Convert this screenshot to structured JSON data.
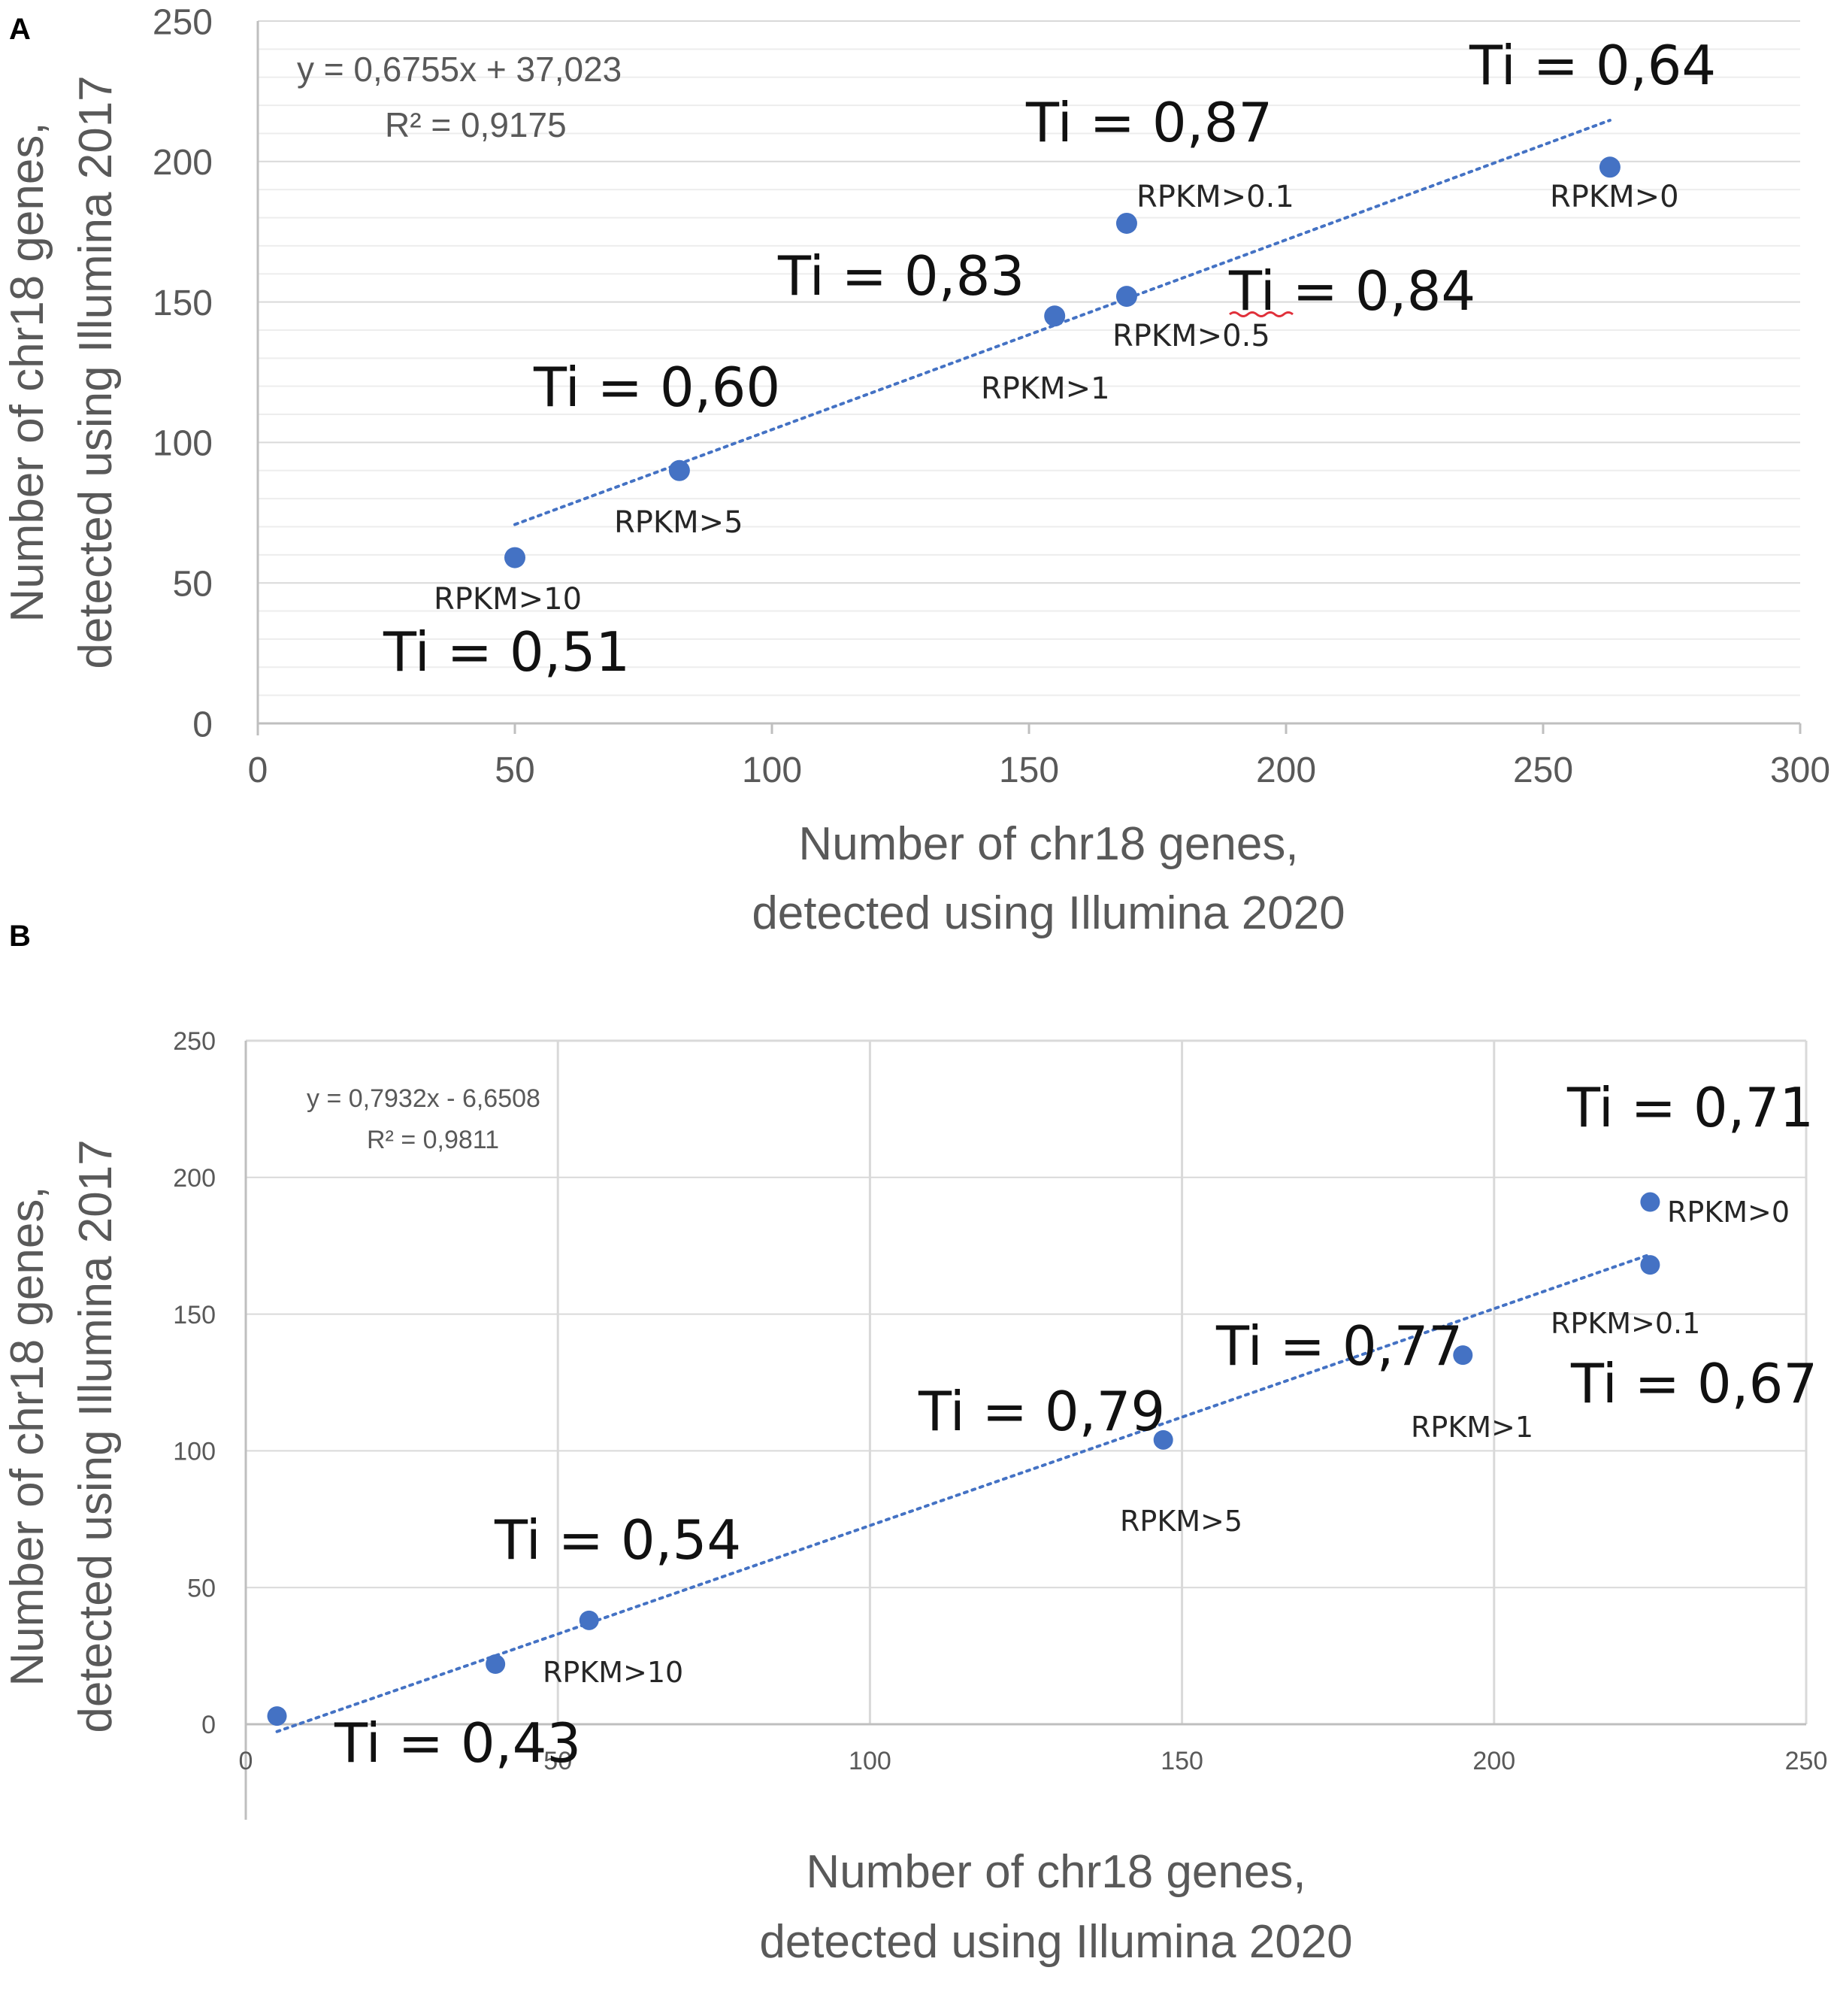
{
  "colors": {
    "point": "#4472C4",
    "trend": "#4472C4",
    "grid_major": "#D9D9D9",
    "grid_minor": "#EDEDED",
    "axis": "#BFBFBF"
  },
  "chart_data": [
    {
      "panel": "A",
      "type": "scatter",
      "xlabel_line1": "Number of chr18 genes,",
      "xlabel_line2": "detected using Illumina 2020",
      "ylabel_line1": "Number of chr18 genes,",
      "ylabel_line2": "detected using Illumina 2017",
      "xlim": [
        0,
        300
      ],
      "ylim": [
        0,
        250
      ],
      "xticks": [
        0,
        50,
        100,
        150,
        200,
        250,
        300
      ],
      "yticks": [
        0,
        50,
        100,
        150,
        200,
        250
      ],
      "points": [
        {
          "x": 50,
          "y": 59,
          "label": "RPKM>10",
          "ti": "Ti = 0,51"
        },
        {
          "x": 82,
          "y": 90,
          "label": "RPKM>5",
          "ti": "Ti = 0,60"
        },
        {
          "x": 155,
          "y": 145,
          "label": "RPKM>1",
          "ti": "Ti = 0,83"
        },
        {
          "x": 169,
          "y": 152,
          "label": "RPKM>0.5",
          "ti": "Ti = 0,84"
        },
        {
          "x": 169,
          "y": 178,
          "label": "RPKM>0.1",
          "ti": "Ti = 0,87"
        },
        {
          "x": 263,
          "y": 198,
          "label": "RPKM>0",
          "ti": "Ti = 0,64"
        }
      ],
      "trendline": {
        "slope": 0.6755,
        "intercept": 37.023,
        "x_range": [
          50,
          263
        ]
      },
      "equation": "y = 0,6755x + 37,023",
      "r2": "R² = 0,9175"
    },
    {
      "panel": "B",
      "type": "scatter",
      "xlabel_line1": "Number of chr18 genes,",
      "xlabel_line2": "detected using Illumina 2020",
      "ylabel_line1": "Number of chr18 genes,",
      "ylabel_line2": "detected using Illumina 2017",
      "xlim": [
        0,
        250
      ],
      "ylim": [
        0,
        250
      ],
      "xticks": [
        0,
        50,
        100,
        150,
        200,
        250
      ],
      "yticks": [
        0,
        50,
        100,
        150,
        200,
        250
      ],
      "points": [
        {
          "x": 5,
          "y": 3,
          "label": "",
          "ti": "Ti = 0,43"
        },
        {
          "x": 40,
          "y": 22,
          "label": "",
          "ti": ""
        },
        {
          "x": 55,
          "y": 38,
          "label": "RPKM>10",
          "ti": "Ti = 0,54"
        },
        {
          "x": 147,
          "y": 104,
          "label": "RPKM>5",
          "ti": "Ti = 0,79"
        },
        {
          "x": 195,
          "y": 135,
          "label": "RPKM>1",
          "ti": "Ti = 0,77"
        },
        {
          "x": 225,
          "y": 168,
          "label": "RPKM>0.1",
          "ti": "Ti = 0,67"
        },
        {
          "x": 225,
          "y": 191,
          "label": "RPKM>0",
          "ti": "Ti = 0,71"
        }
      ],
      "trendline": {
        "slope": 0.7932,
        "intercept": -6.6508,
        "x_range": [
          5,
          225
        ]
      },
      "equation": "y = 0,7932x - 6,6508",
      "r2": "R² = 0,9811"
    }
  ]
}
